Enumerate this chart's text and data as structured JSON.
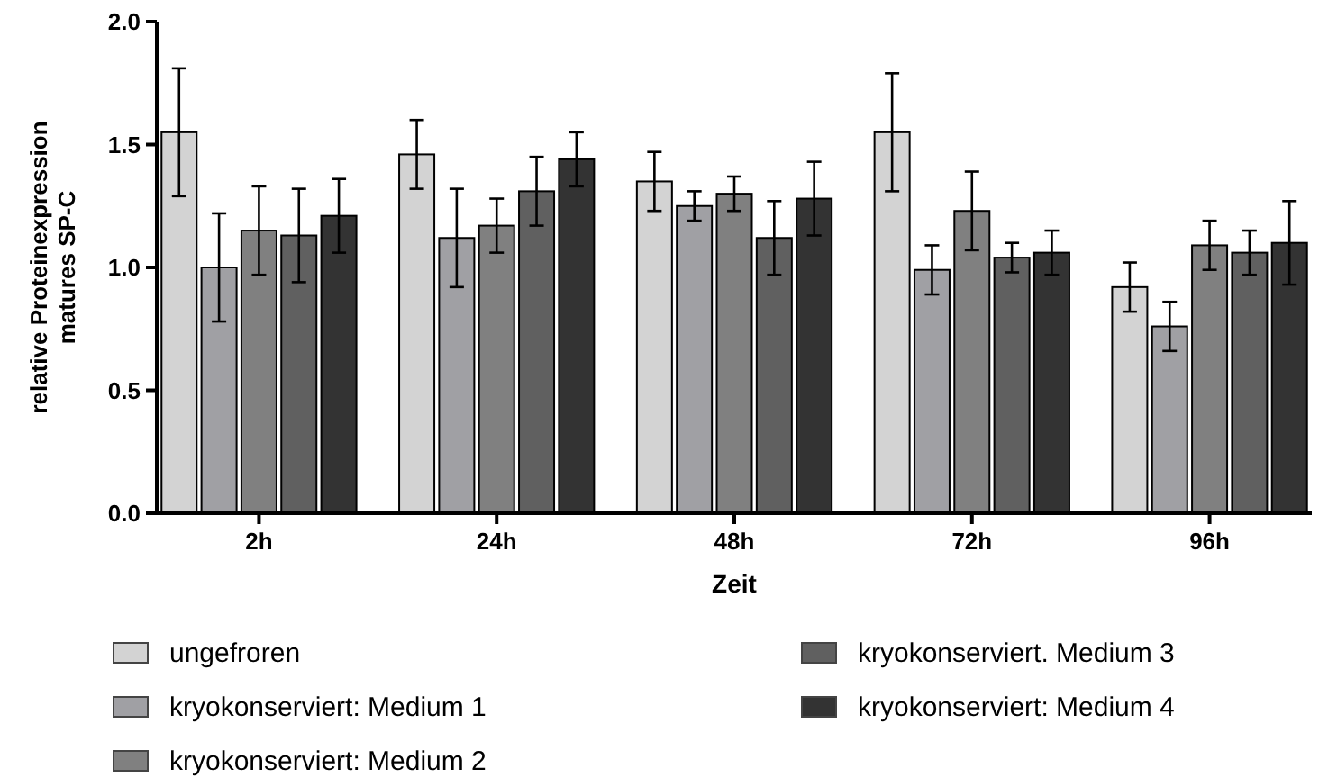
{
  "chart_data": {
    "type": "bar",
    "xlabel": "Zeit",
    "ylabel": "relative Proteinexpression matures SP-C",
    "categories": [
      "2h",
      "24h",
      "48h",
      "72h",
      "96h"
    ],
    "series": [
      {
        "name": "ungefroren",
        "color": "#d3d3d3",
        "values": [
          1.55,
          1.46,
          1.35,
          1.55,
          0.92
        ],
        "errors": [
          0.26,
          0.14,
          0.12,
          0.24,
          0.1
        ]
      },
      {
        "name": "kryokonserviert: Medium 1",
        "color": "#a0a0a4",
        "values": [
          1.0,
          1.12,
          1.25,
          0.99,
          0.76
        ],
        "errors": [
          0.22,
          0.2,
          0.06,
          0.1,
          0.1
        ]
      },
      {
        "name": "kryokonserviert: Medium 2",
        "color": "#808080",
        "values": [
          1.15,
          1.17,
          1.3,
          1.23,
          1.09
        ],
        "errors": [
          0.18,
          0.11,
          0.07,
          0.16,
          0.1
        ]
      },
      {
        "name": "kryokonserviert. Medium 3",
        "color": "#606060",
        "values": [
          1.13,
          1.31,
          1.12,
          1.04,
          1.06
        ],
        "errors": [
          0.19,
          0.14,
          0.15,
          0.06,
          0.09
        ]
      },
      {
        "name": "kryokonserviert: Medium 4",
        "color": "#333333",
        "values": [
          1.21,
          1.44,
          1.28,
          1.06,
          1.1
        ],
        "errors": [
          0.15,
          0.11,
          0.15,
          0.09,
          0.17
        ]
      }
    ],
    "ylim": [
      0,
      2
    ],
    "yticks": [
      {
        "value": 0,
        "label": "0.0"
      },
      {
        "value": 0.5,
        "label": "0.5"
      },
      {
        "value": 1,
        "label": "1.0"
      },
      {
        "value": 1.5,
        "label": "1.5"
      },
      {
        "value": 2,
        "label": "2.0"
      }
    ],
    "grid": false,
    "legend": "bottom"
  }
}
